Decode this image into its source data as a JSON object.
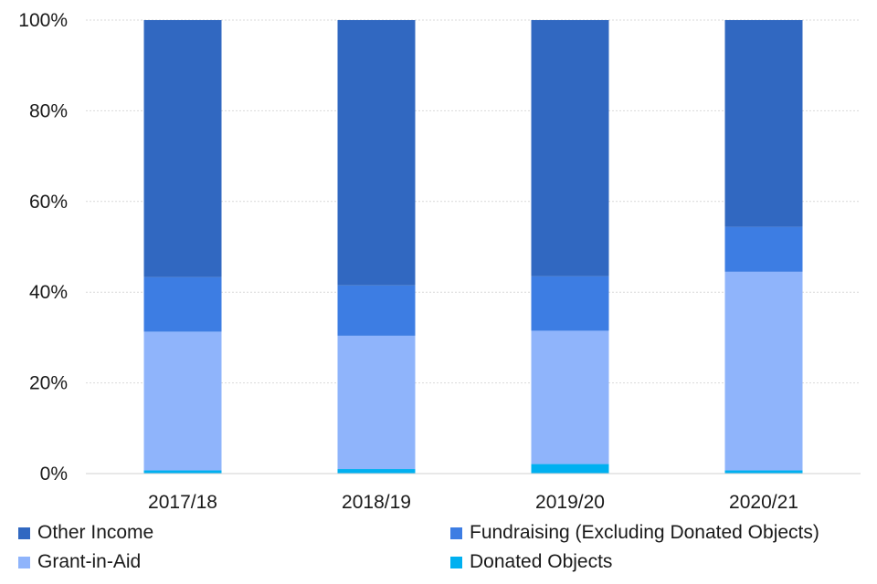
{
  "chart_data": {
    "type": "bar",
    "stacked": true,
    "percent": true,
    "categories": [
      "2017/18",
      "2018/19",
      "2019/20",
      "2020/21"
    ],
    "series": [
      {
        "name": "Donated Objects",
        "color": "#00b0f0",
        "values": [
          0.7,
          1.0,
          2.1,
          0.7
        ]
      },
      {
        "name": "Grant-in-Aid",
        "color": "#8fb4fb",
        "values": [
          30.6,
          29.4,
          29.4,
          43.8
        ]
      },
      {
        "name": "Fundraising (Excluding Donated Objects)",
        "color": "#3d7de3",
        "values": [
          12.0,
          11.1,
          12.0,
          9.9
        ]
      },
      {
        "name": "Other Income",
        "color": "#3168c1",
        "values": [
          56.7,
          58.5,
          56.5,
          45.6
        ]
      }
    ],
    "ylim": [
      0,
      100
    ],
    "yticks": [
      "0%",
      "20%",
      "40%",
      "60%",
      "80%",
      "100%"
    ],
    "grid": true,
    "legend_position": "bottom",
    "title": "",
    "xlabel": "",
    "ylabel": ""
  },
  "legend": {
    "items": [
      {
        "label": "Other Income",
        "color": "#3168c1"
      },
      {
        "label": "Fundraising (Excluding Donated Objects)",
        "color": "#3d7de3"
      },
      {
        "label": "Grant-in-Aid",
        "color": "#8fb4fb"
      },
      {
        "label": "Donated Objects",
        "color": "#00b0f0"
      }
    ]
  }
}
